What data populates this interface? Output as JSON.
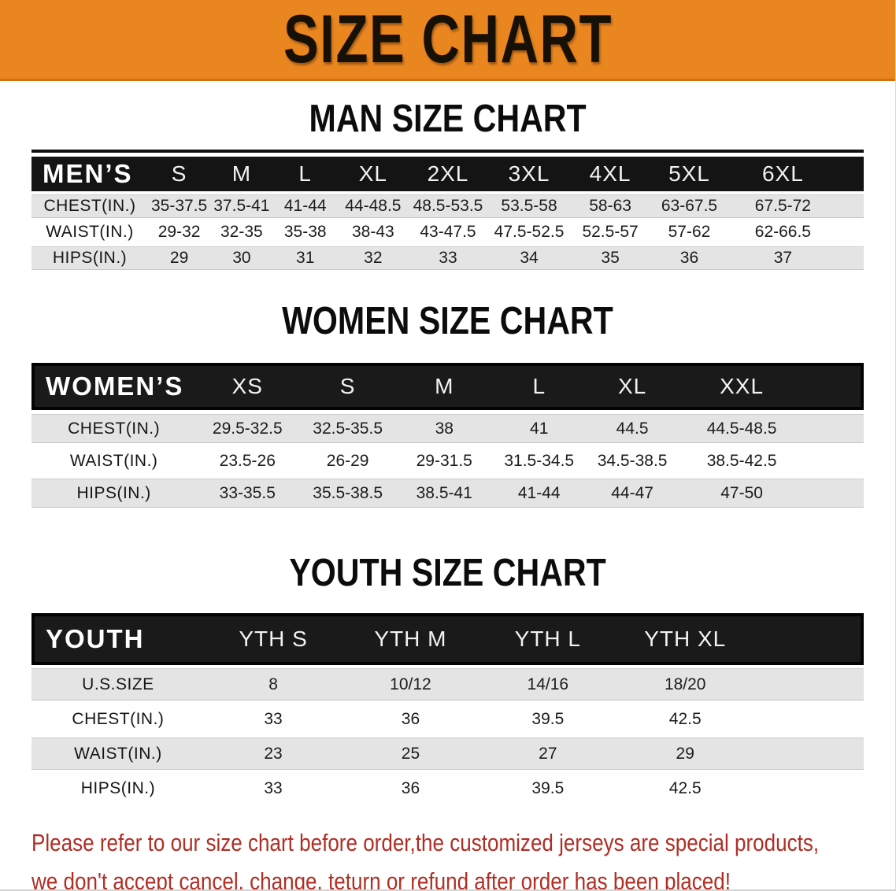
{
  "banner": {
    "title": "SIZE CHART"
  },
  "colors": {
    "banner_background": "#ea861f",
    "table_header_background": "#161616",
    "shaded_row_background": "#e4e4e4",
    "disclaimer_text": "#b02e24"
  },
  "sections": [
    {
      "title": "MAN SIZE CHART",
      "corner_label": "MEN’S",
      "sizes": [
        "S",
        "M",
        "L",
        "XL",
        "2XL",
        "3XL",
        "4XL",
        "5XL",
        "6XL"
      ],
      "rows": [
        {
          "label": "CHEST(IN.)",
          "values": [
            "35-37.5",
            "37.5-41",
            "41-44",
            "44-48.5",
            "48.5-53.5",
            "53.5-58",
            "58-63",
            "63-67.5",
            "67.5-72"
          ]
        },
        {
          "label": "WAIST(IN.)",
          "values": [
            "29-32",
            "32-35",
            "35-38",
            "38-43",
            "43-47.5",
            "47.5-52.5",
            "52.5-57",
            "57-62",
            "62-66.5"
          ]
        },
        {
          "label": "HIPS(IN.)",
          "values": [
            "29",
            "30",
            "31",
            "32",
            "33",
            "34",
            "35",
            "36",
            "37"
          ]
        }
      ]
    },
    {
      "title": "WOMEN SIZE CHART",
      "corner_label": "WOMEN’S",
      "sizes": [
        "XS",
        "S",
        "M",
        "L",
        "XL",
        "XXL"
      ],
      "rows": [
        {
          "label": "CHEST(IN.)",
          "values": [
            "29.5-32.5",
            "32.5-35.5",
            "38",
            "41",
            "44.5",
            "44.5-48.5"
          ]
        },
        {
          "label": "WAIST(IN.)",
          "values": [
            "23.5-26",
            "26-29",
            "29-31.5",
            "31.5-34.5",
            "34.5-38.5",
            "38.5-42.5"
          ]
        },
        {
          "label": "HIPS(IN.)",
          "values": [
            "33-35.5",
            "35.5-38.5",
            "38.5-41",
            "41-44",
            "44-47",
            "47-50"
          ]
        }
      ]
    },
    {
      "title": "YOUTH SIZE CHART",
      "corner_label": "YOUTH",
      "sizes": [
        "YTH S",
        "YTH M",
        "YTH L",
        "YTH XL"
      ],
      "rows": [
        {
          "label": "U.S.SIZE",
          "values": [
            "8",
            "10/12",
            "14/16",
            "18/20"
          ]
        },
        {
          "label": "CHEST(IN.)",
          "values": [
            "33",
            "36",
            "39.5",
            "42.5"
          ]
        },
        {
          "label": "WAIST(IN.)",
          "values": [
            "23",
            "25",
            "27",
            "29"
          ]
        },
        {
          "label": "HIPS(IN.)",
          "values": [
            "33",
            "36",
            "39.5",
            "42.5"
          ]
        }
      ]
    }
  ],
  "disclaimer": {
    "line1": "Please refer to our size chart before order,the customized jerseys are special products,",
    "line2": "we don't accept cancel, change, teturn or refund after order has been placed!"
  }
}
